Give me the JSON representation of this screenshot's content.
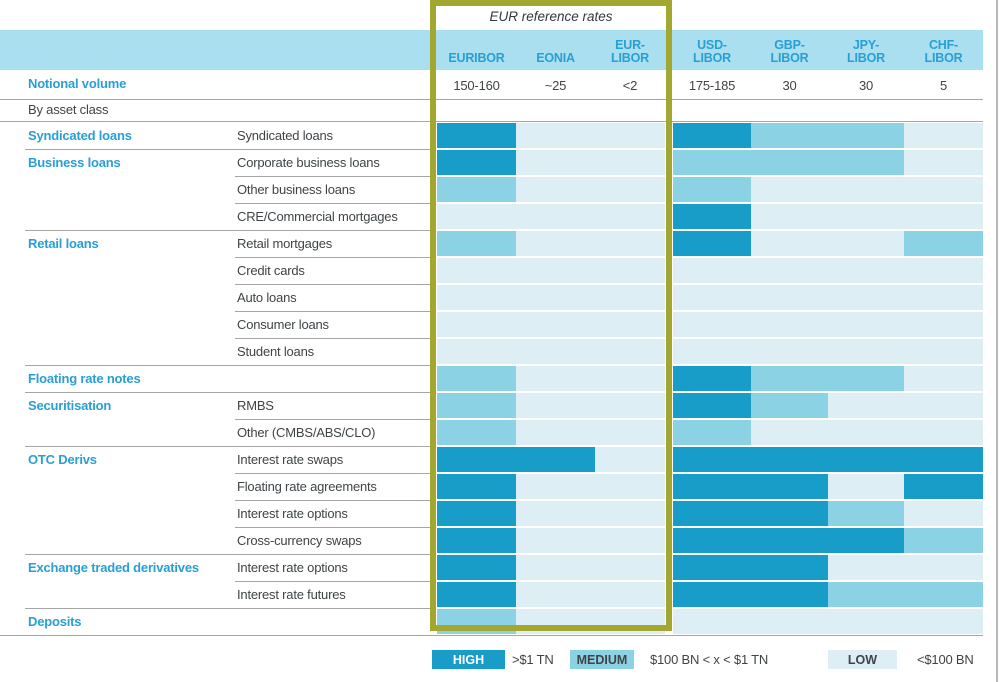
{
  "highlight_box": {
    "title": "EUR reference rates"
  },
  "header": {
    "notional_label": "Notional volume",
    "by_asset_class_label": "By asset class"
  },
  "chart_data": {
    "type": "heatmap",
    "title": "EUR reference rates",
    "columns": [
      "EURIBOR",
      "EONIA",
      "EUR-LIBOR",
      "USD-LIBOR",
      "GBP-LIBOR",
      "JPY-LIBOR",
      "CHF-LIBOR"
    ],
    "column_header_lines": [
      [
        "EURIBOR"
      ],
      [
        "EONIA"
      ],
      [
        "EUR-",
        "LIBOR"
      ],
      [
        "USD-",
        "LIBOR"
      ],
      [
        "GBP-",
        "LIBOR"
      ],
      [
        "JPY-",
        "LIBOR"
      ],
      [
        "CHF-",
        "LIBOR"
      ]
    ],
    "eur_reference_rate_columns": [
      "EURIBOR",
      "EONIA",
      "EUR-LIBOR"
    ],
    "notional_volume": [
      "150-160",
      "~25",
      "<2",
      "175-185",
      "30",
      "30",
      "5"
    ],
    "value_scale": {
      "H": "HIGH (>$1 TN)",
      "M": "MEDIUM ($100 BN < x < $1 TN)",
      "L": "LOW (<$100 BN)"
    },
    "rows": [
      {
        "group": "Syndicated loans",
        "label": "Syndicated loans",
        "sep": "none",
        "values": [
          "H",
          "L",
          "L",
          "H",
          "M",
          "M",
          "L"
        ]
      },
      {
        "group": "Business loans",
        "label": "Corporate business loans",
        "sep": "group",
        "values": [
          "H",
          "L",
          "L",
          "M",
          "M",
          "M",
          "L"
        ]
      },
      {
        "group": "",
        "label": "Other business loans",
        "sep": "sub",
        "values": [
          "M",
          "L",
          "L",
          "M",
          "L",
          "L",
          "L"
        ]
      },
      {
        "group": "",
        "label": "CRE/Commercial mortgages",
        "sep": "sub",
        "values": [
          "L",
          "L",
          "L",
          "H",
          "L",
          "L",
          "L"
        ]
      },
      {
        "group": "Retail loans",
        "label": "Retail mortgages",
        "sep": "group",
        "values": [
          "M",
          "L",
          "L",
          "H",
          "L",
          "L",
          "M"
        ]
      },
      {
        "group": "",
        "label": "Credit cards",
        "sep": "sub",
        "values": [
          "L",
          "L",
          "L",
          "L",
          "L",
          "L",
          "L"
        ]
      },
      {
        "group": "",
        "label": "Auto loans",
        "sep": "sub",
        "values": [
          "L",
          "L",
          "L",
          "L",
          "L",
          "L",
          "L"
        ]
      },
      {
        "group": "",
        "label": "Consumer loans",
        "sep": "sub",
        "values": [
          "L",
          "L",
          "L",
          "L",
          "L",
          "L",
          "L"
        ]
      },
      {
        "group": "",
        "label": "Student loans",
        "sep": "sub",
        "values": [
          "L",
          "L",
          "L",
          "L",
          "L",
          "L",
          "L"
        ]
      },
      {
        "group": "Floating rate notes",
        "label": "",
        "sep": "group",
        "values": [
          "M",
          "L",
          "L",
          "H",
          "M",
          "M",
          "L"
        ]
      },
      {
        "group": "Securitisation",
        "label": "RMBS",
        "sep": "group",
        "values": [
          "M",
          "L",
          "L",
          "H",
          "M",
          "L",
          "L"
        ]
      },
      {
        "group": "",
        "label": "Other (CMBS/ABS/CLO)",
        "sep": "sub",
        "values": [
          "M",
          "L",
          "L",
          "M",
          "L",
          "L",
          "L"
        ]
      },
      {
        "group": "OTC Derivs",
        "label": "Interest rate swaps",
        "sep": "group",
        "values": [
          "H",
          "H",
          "L",
          "H",
          "H",
          "H",
          "H"
        ]
      },
      {
        "group": "",
        "label": "Floating rate agreements",
        "sep": "sub",
        "values": [
          "H",
          "L",
          "L",
          "H",
          "H",
          "L",
          "H"
        ]
      },
      {
        "group": "",
        "label": "Interest rate options",
        "sep": "sub",
        "values": [
          "H",
          "L",
          "L",
          "H",
          "H",
          "M",
          "L"
        ]
      },
      {
        "group": "",
        "label": "Cross-currency swaps",
        "sep": "sub",
        "values": [
          "H",
          "L",
          "L",
          "H",
          "H",
          "H",
          "M"
        ]
      },
      {
        "group": "Exchange traded derivatives",
        "label": "Interest rate options",
        "sep": "group",
        "values": [
          "H",
          "L",
          "L",
          "H",
          "H",
          "L",
          "L"
        ]
      },
      {
        "group": "",
        "label": "Interest rate futures",
        "sep": "sub",
        "values": [
          "H",
          "L",
          "L",
          "H",
          "H",
          "M",
          "M"
        ]
      },
      {
        "group": "Deposits",
        "label": "",
        "sep": "group",
        "values": [
          "M",
          "L",
          "L",
          "L",
          "L",
          "L",
          "L"
        ]
      }
    ]
  },
  "legend": [
    {
      "key": "H",
      "label": "HIGH",
      "desc": ">$1 TN"
    },
    {
      "key": "M",
      "label": "MEDIUM",
      "desc": "$100 BN < x < $1 TN"
    },
    {
      "key": "L",
      "label": "LOW",
      "desc": "<$100 BN"
    }
  ],
  "colors": {
    "high": "#189DC9",
    "medium": "#8CD2E5",
    "low": "#DDEEF5",
    "header_band": "#A9DFEE",
    "accent_text": "#299FD4",
    "dark_text": "#3F4447",
    "olive": "#A2A82F",
    "line": "#A6A6A6"
  }
}
